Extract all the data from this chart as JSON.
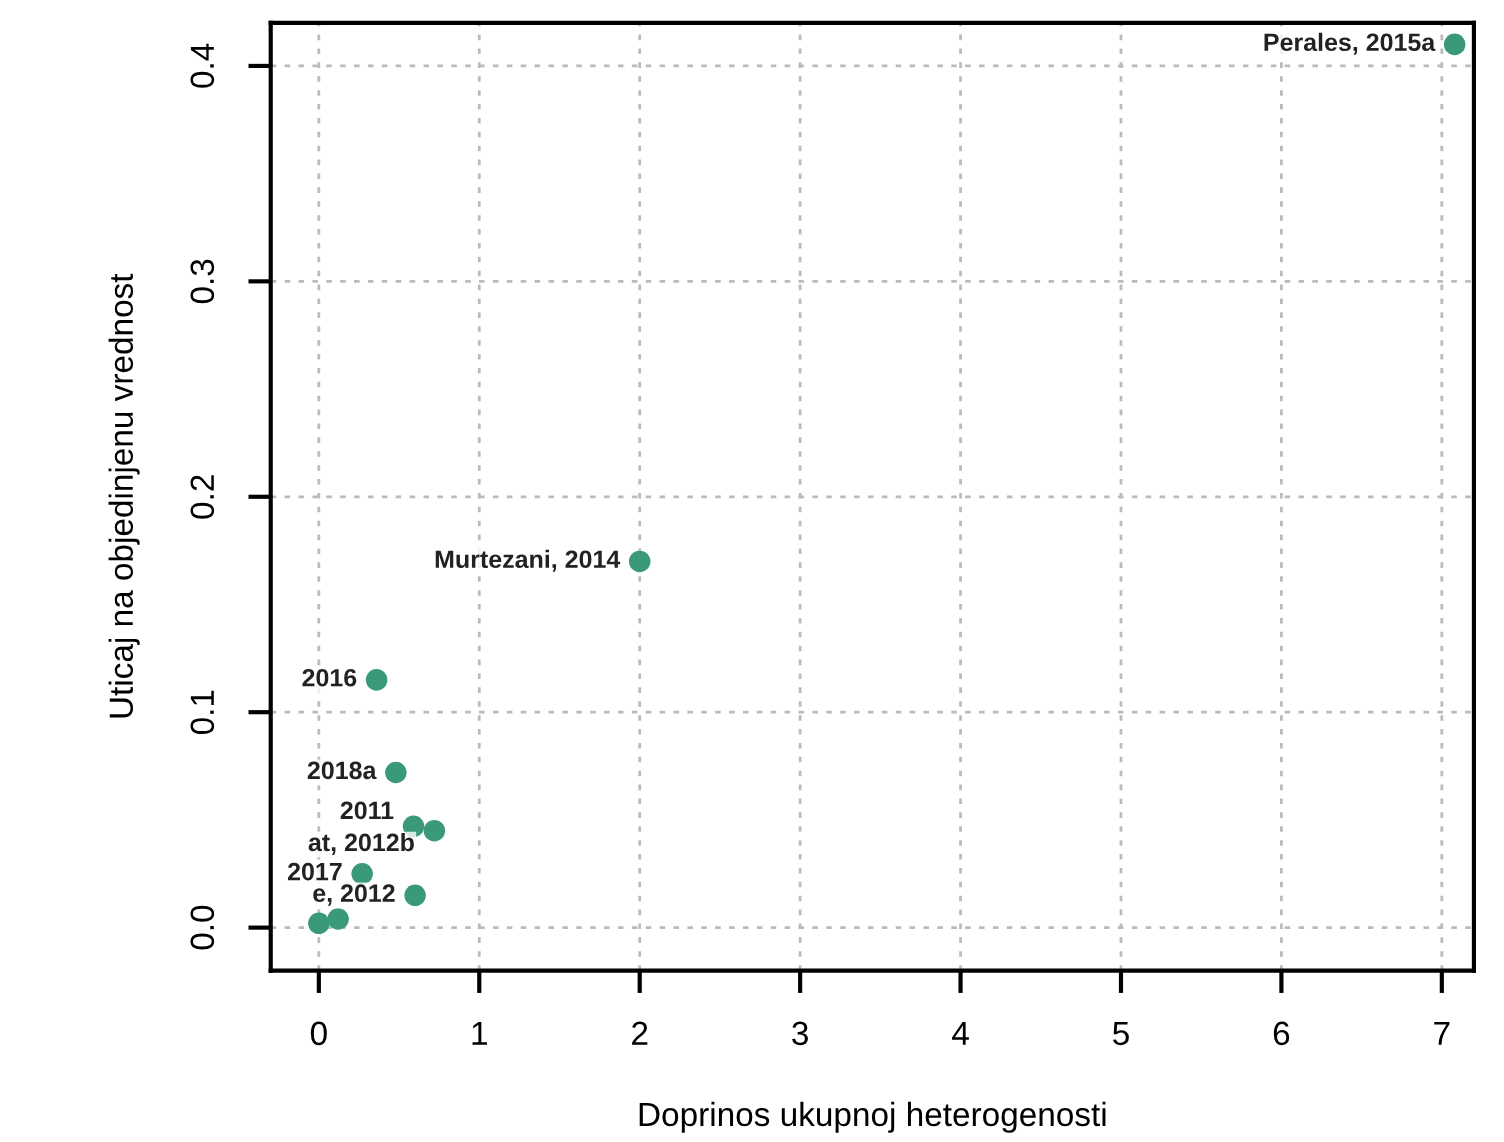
{
  "chart_data": {
    "type": "scatter",
    "xlabel": "Doprinos ukupnoj heterogenosti",
    "ylabel": "Uticaj na objedinjenu vrednost",
    "x": [
      7.08,
      2.0,
      0.36,
      0.48,
      0.59,
      0.72,
      0.27,
      0.6,
      0.0,
      0.12
    ],
    "values": [
      0.41,
      0.17,
      0.115,
      0.072,
      0.047,
      0.045,
      0.025,
      0.015,
      0.002,
      0.004
    ],
    "color": "#3a9a78",
    "marker": "circle",
    "grid": true,
    "xlim": [
      -0.3,
      7.2
    ],
    "ylim": [
      -0.02,
      0.42
    ],
    "xticks": [
      0,
      1,
      2,
      3,
      4,
      5,
      6,
      7
    ],
    "yticks": [
      {
        "value": 0,
        "label": "0.0"
      },
      0.1,
      0.2,
      0.3,
      0.4
    ],
    "annotations": [
      {
        "text": "Perales, 2015a",
        "x": 7.08,
        "y": 0.41
      },
      {
        "text": "Murtezani, 2014",
        "x": 2.0,
        "y": 0.17
      },
      {
        "text": "2016",
        "x": 0.36,
        "y": 0.115
      },
      {
        "text": "2018a",
        "x": 0.48,
        "y": 0.072
      },
      {
        "text": "2011",
        "x": 0.59,
        "y": 0.047
      },
      {
        "text": "at, 2012b",
        "x": 0.72,
        "y": 0.045
      },
      {
        "text": "2017",
        "x": 0.27,
        "y": 0.025
      },
      {
        "text": "e, 2012",
        "x": 0.6,
        "y": 0.015
      }
    ]
  }
}
